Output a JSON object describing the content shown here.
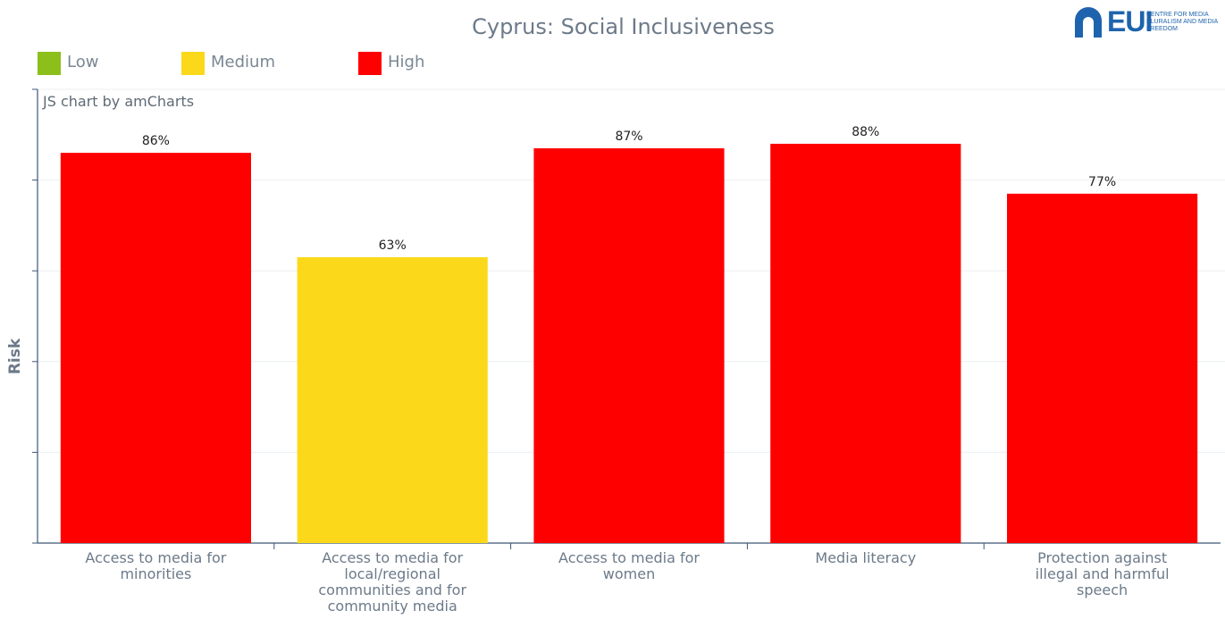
{
  "title": "Cyprus: Social Inclusiveness",
  "logo": {
    "text": "EUI",
    "subtitle": "CENTRE FOR MEDIA PLURALISM AND MEDIA FREEDOM"
  },
  "credit": "JS chart by amCharts",
  "legend": [
    {
      "label": "Low",
      "color": "#8cbf1a"
    },
    {
      "label": "Medium",
      "color": "#fbd91a"
    },
    {
      "label": "High",
      "color": "#ff0000"
    }
  ],
  "chart_data": {
    "type": "bar",
    "title": "Cyprus: Social Inclusiveness",
    "ylabel": "Risk",
    "xlabel": "",
    "ylim": [
      0,
      100
    ],
    "grid": true,
    "legend_position": "top-left",
    "categories": [
      "Access to media for minorities",
      "Access to media for local/regional communities and for community media",
      "Access to media for women",
      "Media literacy",
      "Protection against illegal and harmful speech"
    ],
    "values": [
      86,
      63,
      87,
      88,
      77
    ],
    "value_labels": [
      "86%",
      "63%",
      "87%",
      "88%",
      "77%"
    ],
    "risk_levels": [
      "High",
      "Medium",
      "High",
      "High",
      "High"
    ]
  }
}
